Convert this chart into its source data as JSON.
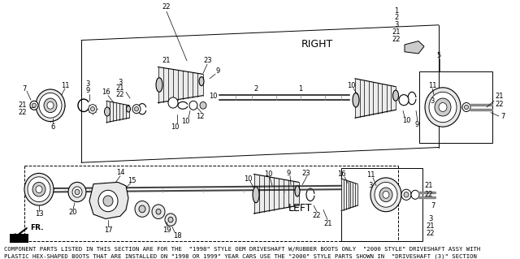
{
  "background_color": "#ffffff",
  "footer_text": "COMPONENT PARTS LISTED IN THIS SECTION ARE FOR THE  \"1998\" STYLE OEM DRIVESHAFT W/RUBBER BOOTS ONLY  \"2000 STYLE\" DRIVESHAFT ASSY WITH\nPLASTIC HEX-SHAPED BOOTS THAT ARE INSTALLED ON \"1998 OR 1999\" YEAR CARS USE THE \"2000\" STYLE PARTS SHOWN IN  \"DRIVESHAFT (3)\" SECTION",
  "right_label": "RIGHT",
  "left_label": "LEFT",
  "fr_label": "FR.",
  "figsize": [
    6.4,
    3.19
  ],
  "dpi": 100,
  "footer_fontsize": 5.2,
  "gray_dark": "#444444",
  "gray_mid": "#888888",
  "gray_light": "#cccccc",
  "gray_lighter": "#e8e8e8"
}
